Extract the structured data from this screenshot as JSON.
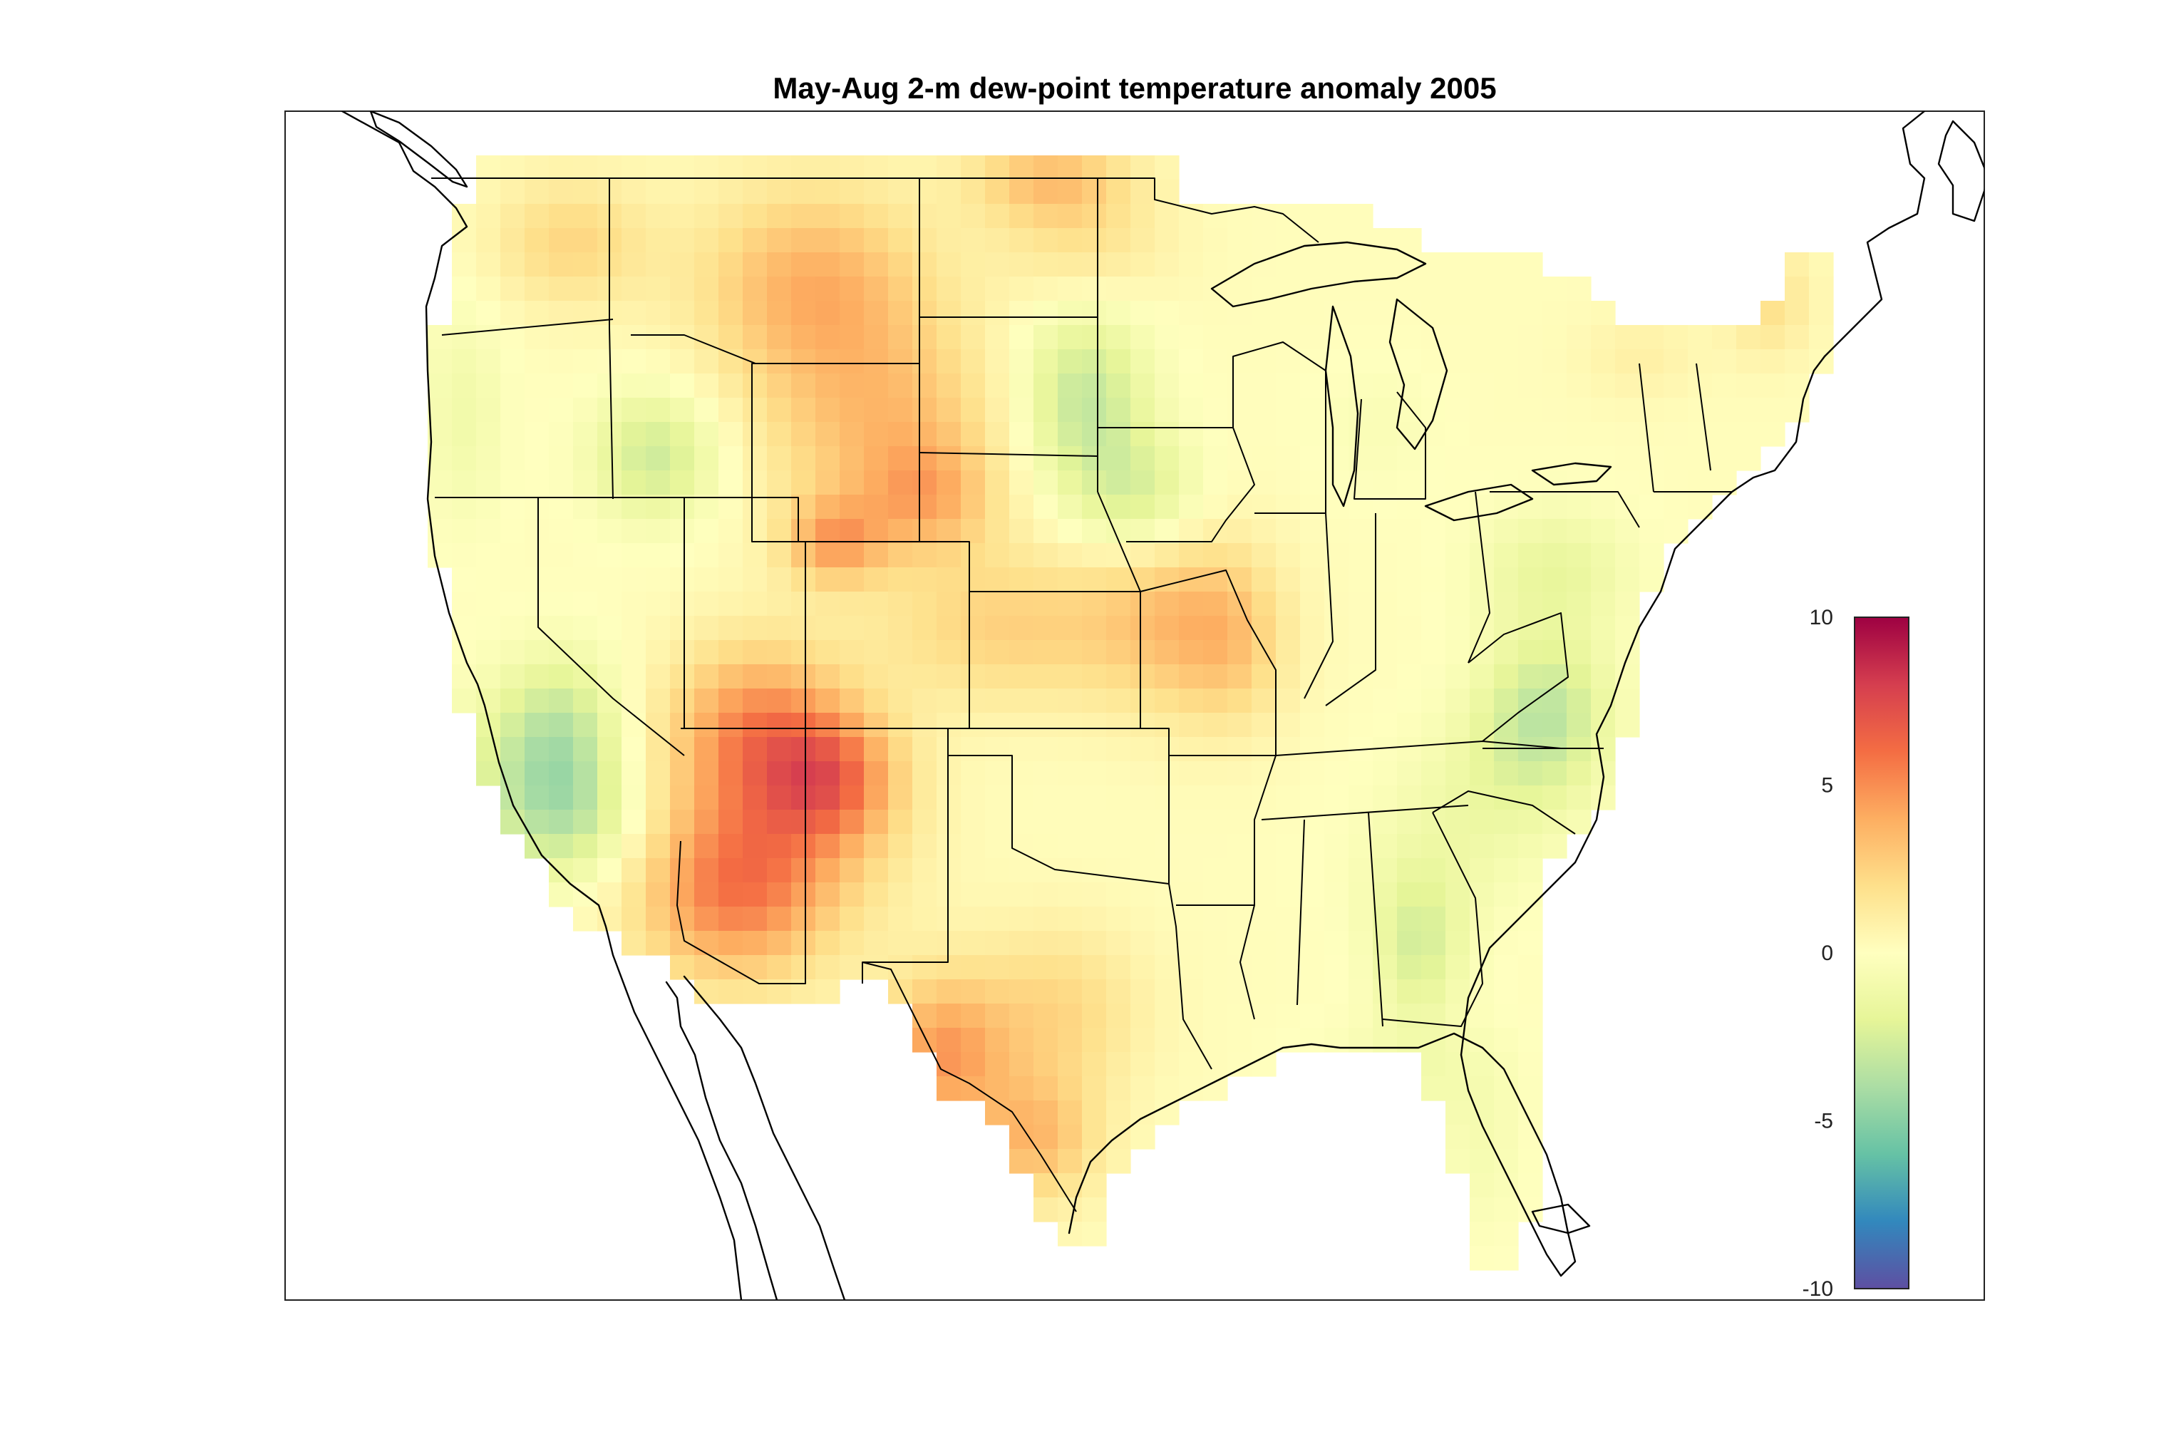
{
  "title": "May-Aug 2-m dew-point temperature anomaly 2005",
  "colorbar": {
    "min": -10,
    "max": 10,
    "ticks": [
      "10",
      "5",
      "0",
      "-5",
      "-10"
    ],
    "tick_values": [
      10,
      5,
      0,
      -5,
      -10
    ],
    "colormap": "spectral",
    "stops": [
      "#5e4fa2",
      "#3288bd",
      "#66c2a5",
      "#abdda4",
      "#e6f598",
      "#ffffbf",
      "#fee08b",
      "#fdae61",
      "#f46d43",
      "#d53e4f",
      "#9e0142"
    ]
  },
  "map": {
    "region": "Contiguous United States",
    "variable": "2-m dew-point temperature anomaly",
    "period": "May-Aug 2005",
    "anomaly_summary": [
      {
        "region": "Northern Rockies / Montana",
        "approx_value": 4
      },
      {
        "region": "Wyoming / Colorado",
        "approx_value": 4
      },
      {
        "region": "Arizona / New Mexico / West Texas",
        "approx_value": 5
      },
      {
        "region": "Central Texas",
        "approx_value": 3
      },
      {
        "region": "Nebraska / Kansas",
        "approx_value": 2
      },
      {
        "region": "Eastern South Dakota / Minnesota border",
        "approx_value": -3
      },
      {
        "region": "Southern California / Nevada",
        "approx_value": -3
      },
      {
        "region": "Idaho",
        "approx_value": -3
      },
      {
        "region": "Virginia / North Carolina",
        "approx_value": -3
      },
      {
        "region": "Georgia",
        "approx_value": -2
      },
      {
        "region": "Great Lakes / Ohio Valley / Southeast",
        "approx_value": 0
      }
    ]
  }
}
